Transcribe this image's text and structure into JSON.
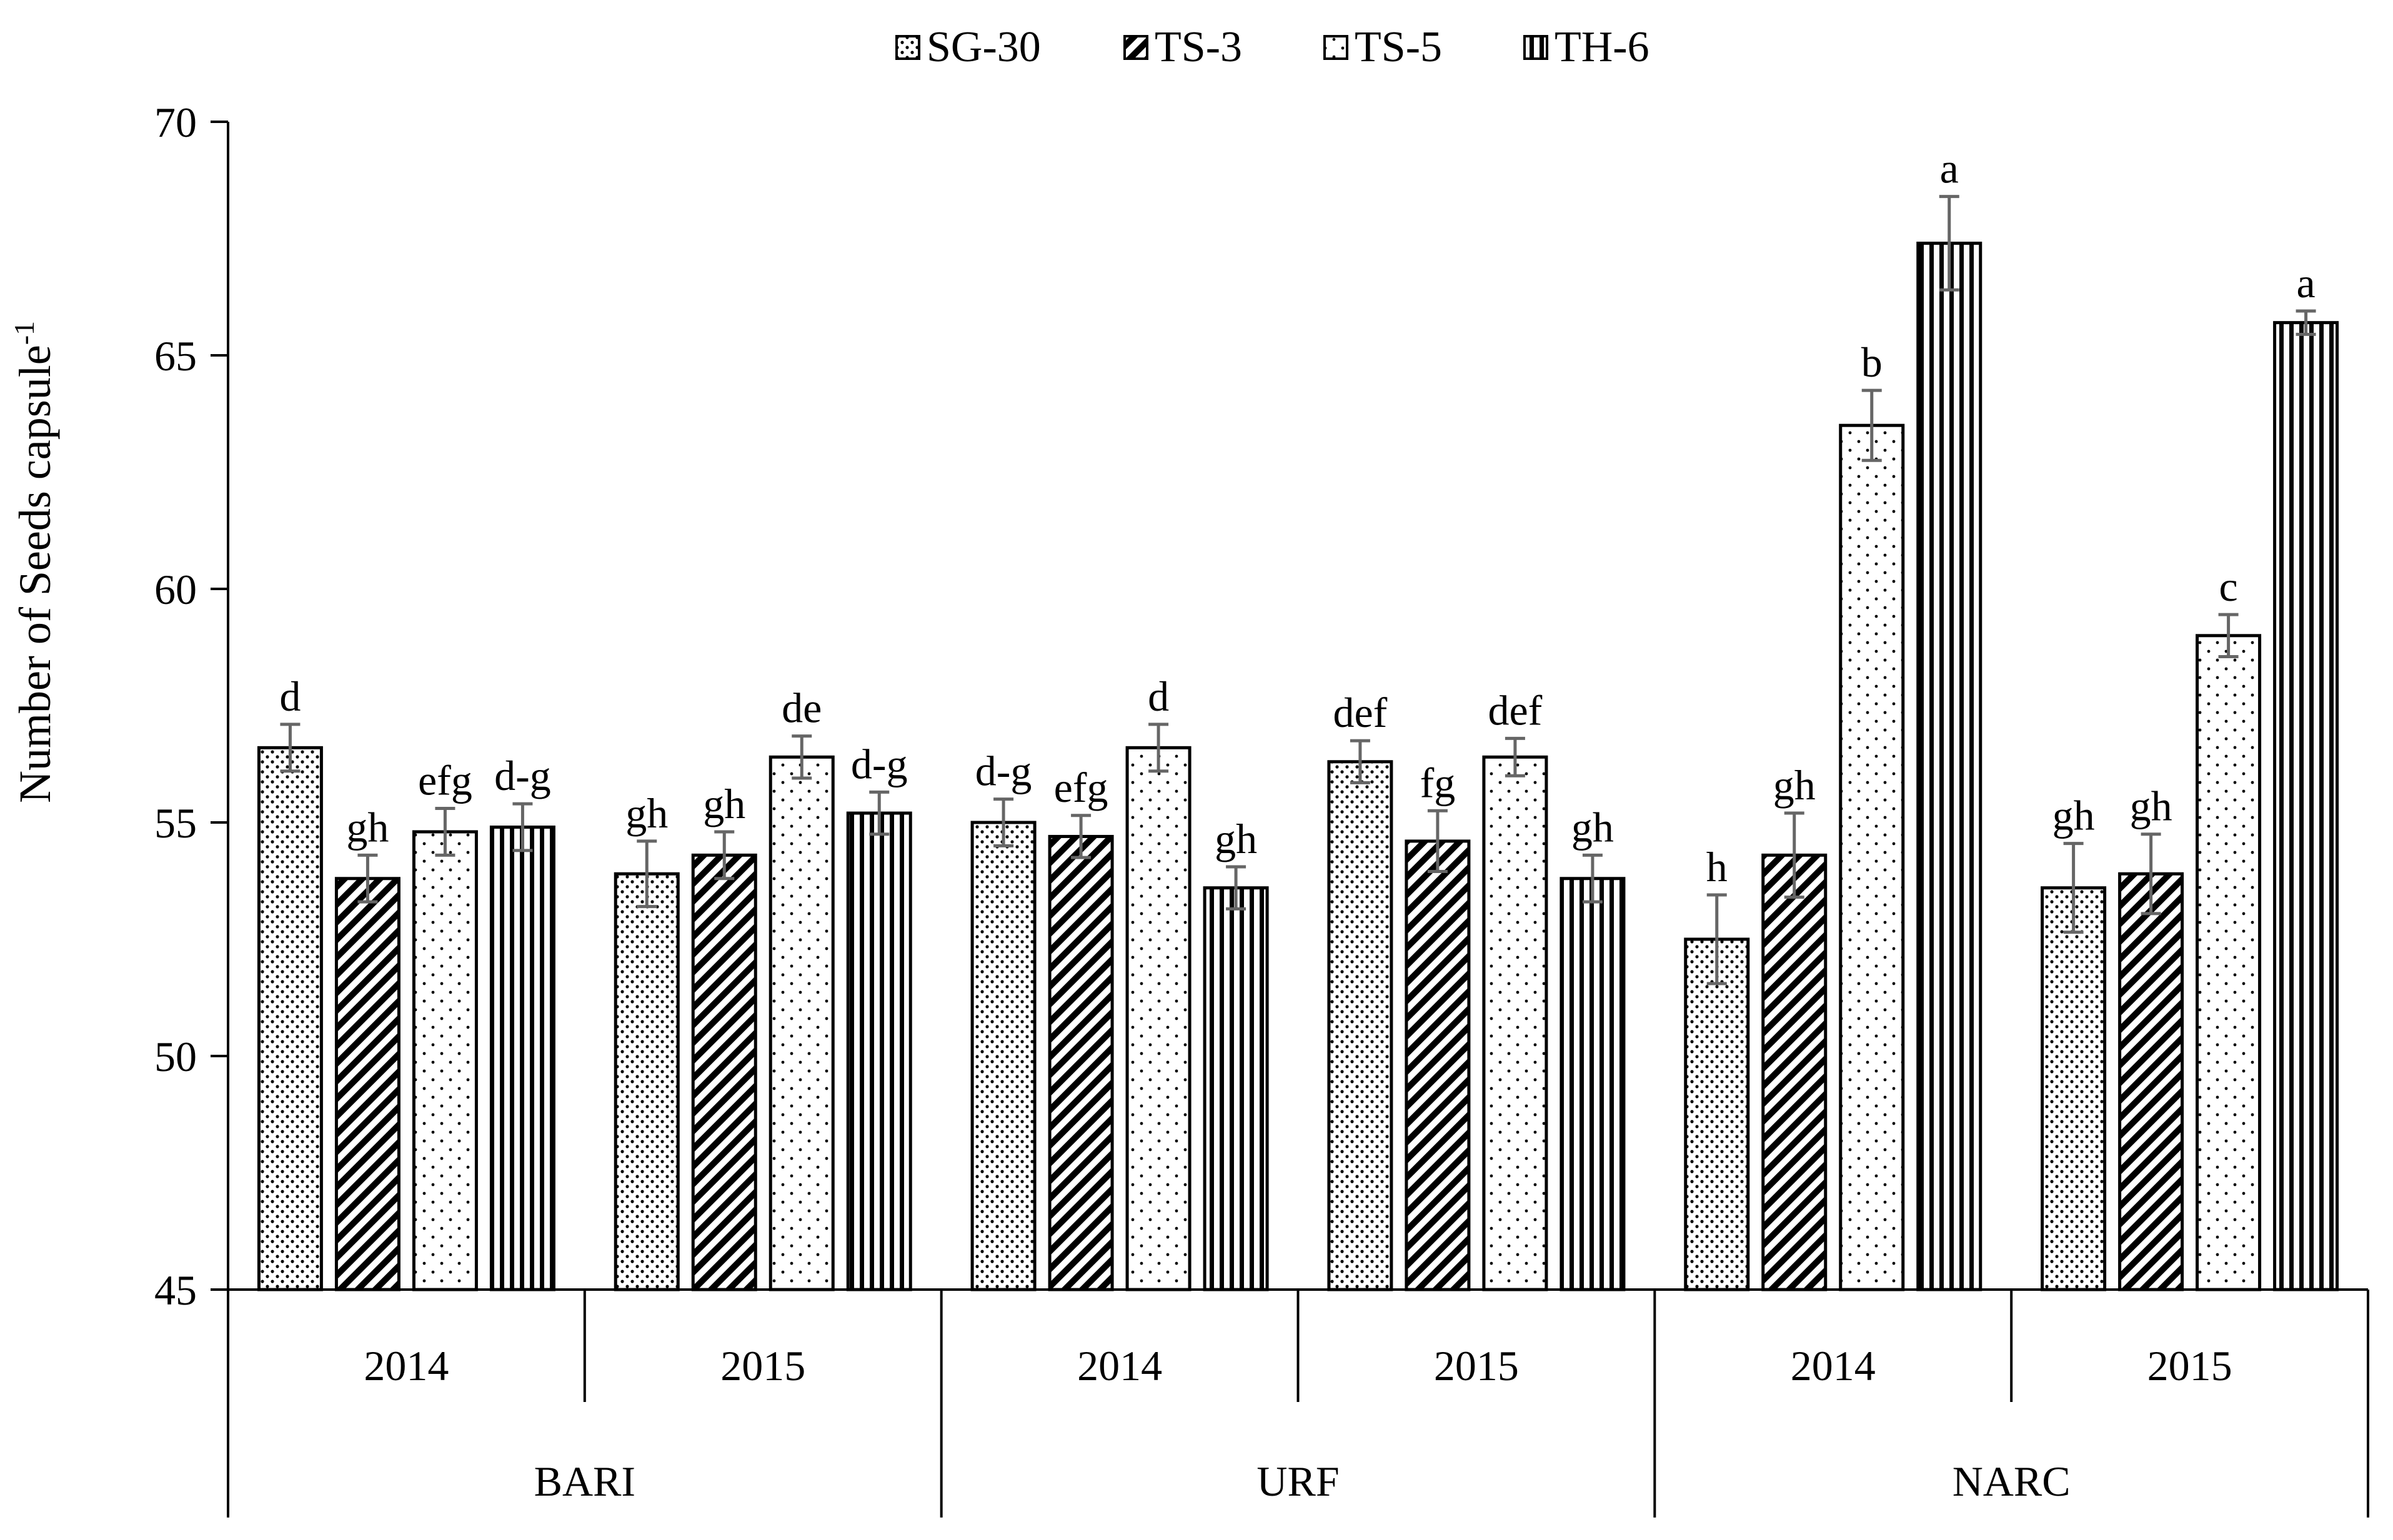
{
  "chart_data": {
    "type": "bar",
    "ylabel": "Number of Seeds capsule",
    "ylabel_superscript": "-1",
    "ylim": [
      45,
      70
    ],
    "yticks": [
      45,
      50,
      55,
      60,
      65,
      70
    ],
    "legend": {
      "position": "top-center",
      "entries": [
        {
          "name": "SG-30",
          "pattern": "dots-dense"
        },
        {
          "name": "TS-3",
          "pattern": "diagonal"
        },
        {
          "name": "TS-5",
          "pattern": "dots-sparse"
        },
        {
          "name": "TH-6",
          "pattern": "vertical"
        }
      ]
    },
    "locations": [
      "BARI",
      "URF",
      "NARC"
    ],
    "years": [
      "2014",
      "2015"
    ],
    "groups": [
      {
        "location": "BARI",
        "year": "2014",
        "values": [
          56.6,
          53.8,
          54.8,
          54.9
        ],
        "errors": [
          0.5,
          0.5,
          0.5,
          0.5
        ],
        "letters": [
          "d",
          "gh",
          "efg",
          "d-g"
        ]
      },
      {
        "location": "BARI",
        "year": "2015",
        "values": [
          53.9,
          54.3,
          56.4,
          55.2
        ],
        "errors": [
          0.7,
          0.5,
          0.45,
          0.45
        ],
        "letters": [
          "gh",
          "gh",
          "de",
          "d-g"
        ]
      },
      {
        "location": "URF",
        "year": "2014",
        "values": [
          55.0,
          54.7,
          56.6,
          53.6
        ],
        "errors": [
          0.5,
          0.45,
          0.5,
          0.45
        ],
        "letters": [
          "d-g",
          "efg",
          "d",
          "gh"
        ]
      },
      {
        "location": "URF",
        "year": "2015",
        "values": [
          56.3,
          54.6,
          56.4,
          53.8
        ],
        "errors": [
          0.45,
          0.65,
          0.4,
          0.5
        ],
        "letters": [
          "def",
          "fg",
          "def",
          "gh"
        ]
      },
      {
        "location": "NARC",
        "year": "2014",
        "values": [
          52.5,
          54.3,
          63.5,
          67.4
        ],
        "errors": [
          0.95,
          0.9,
          0.75,
          1.0
        ],
        "letters": [
          "h",
          "gh",
          "b",
          "a"
        ]
      },
      {
        "location": "NARC",
        "year": "2015",
        "values": [
          53.6,
          53.9,
          59.0,
          65.7
        ],
        "errors": [
          0.95,
          0.85,
          0.45,
          0.25
        ],
        "letters": [
          "gh",
          "gh",
          "c",
          "a"
        ]
      }
    ]
  }
}
